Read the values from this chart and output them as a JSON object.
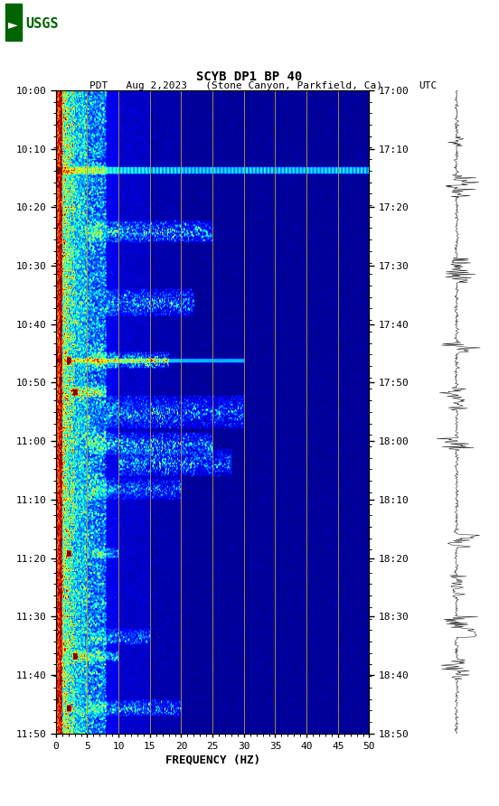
{
  "title_line1": "SCYB DP1 BP 40",
  "title_line2_pdt": "PDT   Aug 2,2023   (Stone Canyon, Parkfield, Ca)",
  "title_line2_utc": "UTC",
  "xlabel": "FREQUENCY (HZ)",
  "freq_min": 0,
  "freq_max": 50,
  "freq_ticks": [
    0,
    5,
    10,
    15,
    20,
    25,
    30,
    35,
    40,
    45,
    50
  ],
  "left_time_labels": [
    "10:00",
    "10:10",
    "10:20",
    "10:30",
    "10:40",
    "10:50",
    "11:00",
    "11:10",
    "11:20",
    "11:30",
    "11:40",
    "11:50"
  ],
  "right_time_labels": [
    "17:00",
    "17:10",
    "17:20",
    "17:30",
    "17:40",
    "17:50",
    "18:00",
    "18:10",
    "18:20",
    "18:30",
    "18:40",
    "18:50"
  ],
  "vertical_lines_freq": [
    5,
    10,
    15,
    20,
    25,
    30,
    35,
    40,
    45
  ],
  "vertical_line_color": "#b89a30",
  "fig_bg_color": "#ffffff",
  "colormap": "jet",
  "n_time_bins": 470,
  "n_freq_bins": 350,
  "seed": 42
}
